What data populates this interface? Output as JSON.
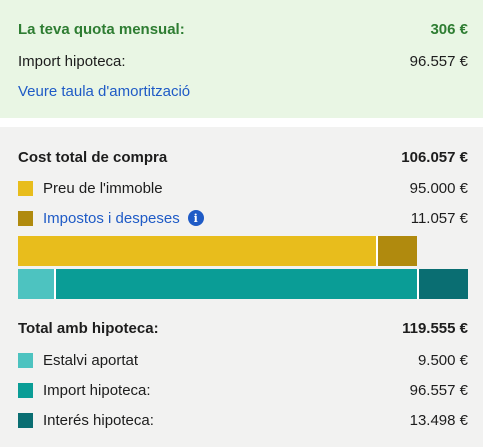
{
  "monthly": {
    "label": "La teva quota mensual:",
    "value": "306 €"
  },
  "mortgage_summary": {
    "label": "Import hipoteca:",
    "value": "96.557 €"
  },
  "amortization_link": "Veure taula d'amortització",
  "purchase": {
    "title": "Cost total de compra",
    "total": "106.057 €",
    "items": [
      {
        "label": "Preu de l'immoble",
        "value": "95.000 €",
        "amount": 95000,
        "color": "#e8bd1c",
        "link": false
      },
      {
        "label": "Impostos i despeses",
        "value": "11.057 €",
        "amount": 11057,
        "color": "#b08a0e",
        "link": true,
        "icon": "info-icon"
      }
    ]
  },
  "mortgage": {
    "title": "Total amb hipoteca:",
    "total": "119.555 €",
    "items": [
      {
        "label": "Estalvi aportat",
        "value": "9.500 €",
        "amount": 9500,
        "color": "#4dc3c0"
      },
      {
        "label": "Import hipoteca:",
        "value": "96.557 €",
        "amount": 96557,
        "color": "#0a9d96"
      },
      {
        "label": "Interés hipoteca:",
        "value": "13.498 €",
        "amount": 13498,
        "color": "#0a6e72"
      }
    ]
  },
  "colors": {
    "panel_top": "#e9f6e4",
    "panel_bottom": "#f2f2f1",
    "accent_green": "#2e7d32",
    "link_blue": "#1f5bc6"
  }
}
